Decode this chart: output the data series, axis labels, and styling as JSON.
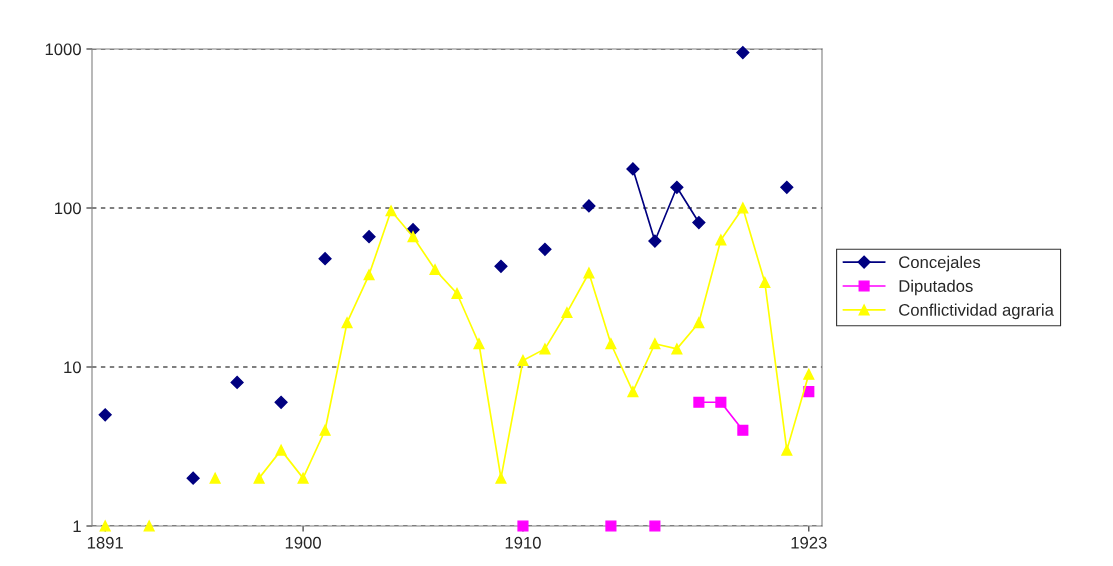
{
  "chart_data": {
    "type": "line",
    "x": [
      1891,
      1892,
      1893,
      1894,
      1895,
      1896,
      1897,
      1898,
      1899,
      1900,
      1901,
      1902,
      1903,
      1904,
      1905,
      1906,
      1907,
      1908,
      1909,
      1910,
      1911,
      1912,
      1913,
      1914,
      1915,
      1916,
      1917,
      1918,
      1919,
      1920,
      1921,
      1922,
      1923
    ],
    "series": [
      {
        "name": "Concejales",
        "color": "#000080",
        "marker": "diamond",
        "values": [
          5,
          null,
          null,
          null,
          2,
          null,
          8,
          null,
          6,
          null,
          48,
          null,
          66,
          null,
          73,
          null,
          null,
          null,
          43,
          null,
          55,
          null,
          103,
          null,
          176,
          62,
          135,
          81,
          null,
          950,
          null,
          135,
          null
        ]
      },
      {
        "name": "Diputados",
        "color": "#ff00ff",
        "marker": "square",
        "values": [
          null,
          null,
          null,
          null,
          null,
          null,
          null,
          null,
          null,
          null,
          null,
          null,
          null,
          null,
          null,
          null,
          null,
          null,
          null,
          1,
          null,
          null,
          null,
          1,
          null,
          1,
          null,
          6,
          6,
          4,
          null,
          null,
          7
        ]
      },
      {
        "name": "Conflictividad agraria",
        "color": "#ffff00",
        "marker": "triangle",
        "values": [
          1,
          null,
          1,
          null,
          null,
          2,
          null,
          2,
          3,
          2,
          4,
          19,
          38,
          96,
          66,
          41,
          29,
          14,
          2,
          11,
          13,
          22,
          39,
          14,
          7,
          14,
          13,
          19,
          63,
          100,
          34,
          3,
          9
        ]
      }
    ],
    "log": "y",
    "ylim": [
      1,
      1000
    ],
    "yticks": [
      1,
      10,
      100,
      1000
    ],
    "xlim": [
      1890.4,
      1923.6
    ],
    "xticks": [
      1891,
      1900,
      1910,
      1923
    ],
    "grid": "y",
    "legend": "right",
    "line_style": "solid"
  }
}
